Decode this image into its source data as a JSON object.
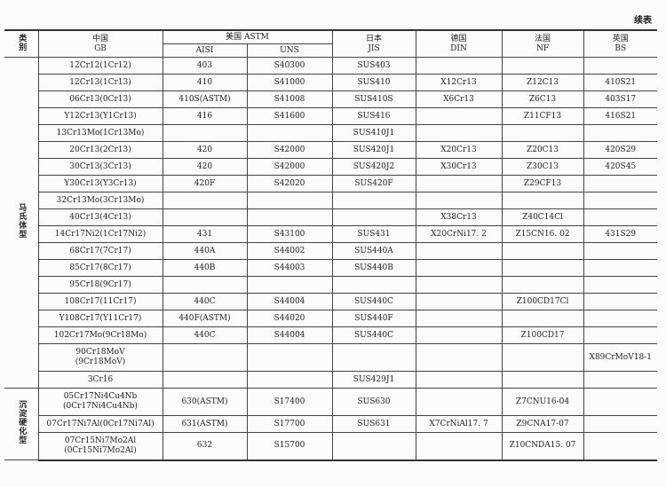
{
  "caption": "续表",
  "header": {
    "category": "类别",
    "gb": [
      "中国",
      "GB"
    ],
    "astm": "美国 ASTM",
    "aisi": "AISI",
    "uns": "UNS",
    "jis": [
      "日本",
      "JIS"
    ],
    "din": [
      "德国",
      "DIN"
    ],
    "nf": [
      "法国",
      "NF"
    ],
    "bs": [
      "英国",
      "BS"
    ]
  },
  "groups": [
    {
      "name": "马氏体型",
      "rows": [
        {
          "gb": [
            "12Cr12(1Cr12)"
          ],
          "aisi": "403",
          "uns": "S40300",
          "jis": "SUS403",
          "din": "",
          "nf": "",
          "bs": ""
        },
        {
          "gb": [
            "12Cr13(1Cr13)"
          ],
          "aisi": "410",
          "uns": "S41000",
          "jis": "SUS410",
          "din": "X12Cr13",
          "nf": "Z12C13",
          "bs": "410S21"
        },
        {
          "gb": [
            "06Cr13(0Cr13)"
          ],
          "aisi": "410S(ASTM)",
          "uns": "S41008",
          "jis": "SUS410S",
          "din": "X6Cr13",
          "nf": "Z6C13",
          "bs": "403S17"
        },
        {
          "gb": [
            "Y12Cr13(Y1Cr13)"
          ],
          "aisi": "416",
          "uns": "S41600",
          "jis": "SUS416",
          "din": "",
          "nf": "Z11CF13",
          "bs": "416S21"
        },
        {
          "gb": [
            "13Cr13Mo(1Cr13Mo)"
          ],
          "aisi": "",
          "uns": "",
          "jis": "SUS410J1",
          "din": "",
          "nf": "",
          "bs": ""
        },
        {
          "gb": [
            "20Cr13(2Cr13)"
          ],
          "aisi": "420",
          "uns": "S42000",
          "jis": "SUS420J1",
          "din": "X20Cr13",
          "nf": "Z20C13",
          "bs": "420S29"
        },
        {
          "gb": [
            "30Cr13(3Cr13)"
          ],
          "aisi": "420",
          "uns": "S42000",
          "jis": "SUS420J2",
          "din": "X30Cr13",
          "nf": "Z30C13",
          "bs": "420S45"
        },
        {
          "gb": [
            "Y30Cr13(Y3Cr13)"
          ],
          "aisi": "420F",
          "uns": "S42020",
          "jis": "SUS420F",
          "din": "",
          "nf": "Z29CF13",
          "bs": ""
        },
        {
          "gb": [
            "32Cr13Mo(3Cr13Mo)"
          ],
          "aisi": "",
          "uns": "",
          "jis": "",
          "din": "",
          "nf": "",
          "bs": ""
        },
        {
          "gb": [
            "40Cr13(4Cr13)"
          ],
          "aisi": "",
          "uns": "",
          "jis": "",
          "din": "X38Cr13",
          "nf": "Z40C14Cl",
          "bs": ""
        },
        {
          "gb": [
            "14Cr17Ni2(1Cr17Ni2)"
          ],
          "aisi": "431",
          "uns": "S43100",
          "jis": "SUS431",
          "din": "X20CrNi17. 2",
          "nf": "Z15CN16. 02",
          "bs": "431S29"
        },
        {
          "gb": [
            "68Cr17(7Cr17)"
          ],
          "aisi": "440A",
          "uns": "S44002",
          "jis": "SUS440A",
          "din": "",
          "nf": "",
          "bs": ""
        },
        {
          "gb": [
            "85Cr17(8Cr17)"
          ],
          "aisi": "440B",
          "uns": "S44003",
          "jis": "SUS440B",
          "din": "",
          "nf": "",
          "bs": ""
        },
        {
          "gb": [
            "95Cr18(9Cr17)"
          ],
          "aisi": "",
          "uns": "",
          "jis": "",
          "din": "",
          "nf": "",
          "bs": ""
        },
        {
          "gb": [
            "108Cr17(11Cr17)"
          ],
          "aisi": "440C",
          "uns": "S44004",
          "jis": "SUS440C",
          "din": "",
          "nf": "Z100CD17Cl",
          "bs": ""
        },
        {
          "gb": [
            "Y108Cr17(Y11Cr17)"
          ],
          "aisi": "440F(ASTM)",
          "uns": "S44020",
          "jis": "SUS440F",
          "din": "",
          "nf": "",
          "bs": ""
        },
        {
          "gb": [
            "102Cr17Mo(9Cr18Mo)"
          ],
          "aisi": "440C",
          "uns": "S44004",
          "jis": "SUS440C",
          "din": "",
          "nf": "Z100CD17",
          "bs": ""
        },
        {
          "gb": [
            "90Cr18MoV",
            "(9Cr18MoV)"
          ],
          "aisi": "",
          "uns": "",
          "jis": "",
          "din": "",
          "nf": "",
          "bs": "X89CrMoV18-1"
        },
        {
          "gb": [
            "3Cr16"
          ],
          "aisi": "",
          "uns": "",
          "jis": "SUS429J1",
          "din": "",
          "nf": "",
          "bs": ""
        }
      ]
    },
    {
      "name": "沉淀硬化型",
      "rows": [
        {
          "gb": [
            "05Cr17Ni4Cu4Nb",
            "(0Cr17Ni4Cu4Nb)"
          ],
          "aisi": "630(ASTM)",
          "uns": "S17400",
          "jis": "SUS630",
          "din": "",
          "nf": "Z7CNU16-04",
          "bs": ""
        },
        {
          "gb": [
            "07Cr17Ni7Al(0Cr17Ni7Al)"
          ],
          "aisi": "631(ASTM)",
          "uns": "S17700",
          "jis": "SUS631",
          "din": "X7CrNiAl17. 7",
          "nf": "Z9CNA17-07",
          "bs": ""
        },
        {
          "gb": [
            "07Cr15Ni7Mo2Al",
            "(0Cr15Ni7Mo2Al)"
          ],
          "aisi": "632",
          "uns": "S15700",
          "jis": "",
          "din": "",
          "nf": "Z10CNDA15. 07",
          "bs": ""
        }
      ]
    }
  ]
}
